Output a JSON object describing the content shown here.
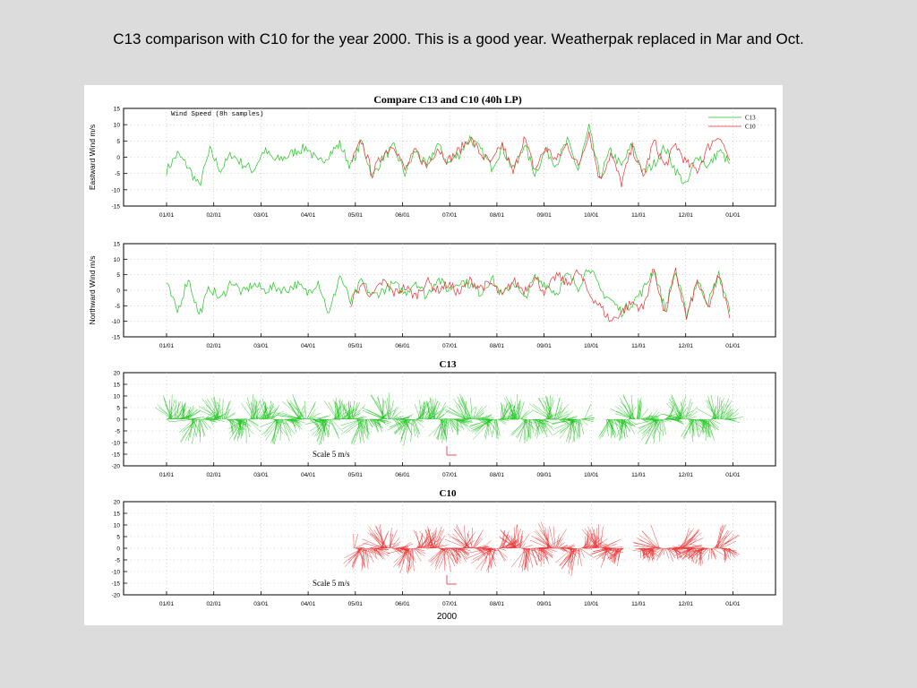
{
  "slide": {
    "title": "C13 comparison with C10 for the year 2000. This is a good year. Weatherpak replaced in Mar and Oct."
  },
  "figure": {
    "title": "Compare C13 and C10 (40h LP)",
    "xlabel": "2000"
  },
  "colors": {
    "c13": "#22c422",
    "c10": "#e83232",
    "axis": "#000000",
    "grid": "#bbbbbb"
  },
  "chart_data": [
    {
      "type": "line",
      "ylabel": "Eastward Wind m/s",
      "annotation": "Wind Speed (8h samples)",
      "legend": "top-right",
      "ylim": [
        -15,
        15
      ],
      "yticks": [
        -15,
        -10,
        -5,
        0,
        5,
        10,
        15
      ],
      "xticks": [
        "01/01",
        "02/01",
        "03/01",
        "04/01",
        "05/01",
        "06/01",
        "07/01",
        "08/01",
        "09/01",
        "10/01",
        "11/01",
        "12/01",
        "01/01"
      ],
      "x_range_days": [
        0,
        366
      ],
      "grid": true,
      "series": [
        {
          "name": "C13",
          "x": [
            0,
            7,
            14,
            21,
            28,
            35,
            42,
            49,
            56,
            63,
            70,
            77,
            84,
            91,
            98,
            105,
            112,
            119,
            126,
            133,
            140,
            147,
            154,
            161,
            168,
            175,
            182,
            189,
            196,
            203,
            210,
            217,
            224,
            231,
            238,
            245,
            252,
            259,
            266,
            273,
            280,
            287,
            294,
            301,
            308,
            315,
            322,
            329,
            336,
            343,
            350,
            357,
            364
          ],
          "values": [
            -4,
            1,
            -3,
            -9,
            2,
            -4,
            1,
            -2,
            -4,
            2,
            -1,
            0,
            2,
            3,
            -2,
            1,
            4,
            -3,
            5,
            -6,
            0,
            3,
            -5,
            2,
            -3,
            4,
            -2,
            1,
            6,
            2,
            -3,
            3,
            -4,
            4,
            -5,
            2,
            -2,
            5,
            -4,
            9,
            -6,
            2,
            -3,
            4,
            -5,
            -2,
            3,
            -4,
            -9,
            1,
            -3,
            2,
            -2
          ]
        },
        {
          "name": "C10",
          "x": [
            119,
            126,
            133,
            140,
            147,
            154,
            161,
            168,
            175,
            182,
            189,
            196,
            203,
            210,
            217,
            224,
            231,
            238,
            245,
            252,
            259,
            266,
            273,
            280,
            287,
            294,
            301,
            308,
            315,
            322,
            329,
            336,
            343,
            350,
            357,
            364
          ],
          "values": [
            -2,
            5,
            -5,
            1,
            4,
            -4,
            2,
            -3,
            3,
            -1,
            2,
            6,
            1,
            -2,
            4,
            -5,
            6,
            -4,
            3,
            -1,
            4,
            -3,
            8,
            -7,
            1,
            -8,
            3,
            -6,
            5,
            -3,
            4,
            -2,
            -4,
            3,
            7,
            -1
          ]
        }
      ]
    },
    {
      "type": "line",
      "ylabel": "Northward Wind m/s",
      "ylim": [
        -15,
        15
      ],
      "yticks": [
        -15,
        -10,
        -5,
        0,
        5,
        10,
        15
      ],
      "xticks": [
        "01/01",
        "02/01",
        "03/01",
        "04/01",
        "05/01",
        "06/01",
        "07/01",
        "08/01",
        "09/01",
        "10/01",
        "11/01",
        "12/01",
        "01/01"
      ],
      "x_range_days": [
        0,
        366
      ],
      "grid": true,
      "series": [
        {
          "name": "C13",
          "x": [
            0,
            7,
            14,
            21,
            28,
            35,
            42,
            49,
            56,
            63,
            70,
            77,
            84,
            91,
            98,
            105,
            112,
            119,
            126,
            133,
            140,
            147,
            154,
            161,
            168,
            175,
            182,
            189,
            196,
            203,
            210,
            217,
            224,
            231,
            238,
            245,
            252,
            259,
            266,
            273,
            280,
            287,
            294,
            301,
            308,
            315,
            322,
            329,
            336,
            343,
            350,
            357,
            364
          ],
          "values": [
            2,
            -7,
            4,
            -8,
            1,
            -3,
            3,
            -1,
            2,
            0,
            1,
            0,
            2,
            -1,
            3,
            -8,
            5,
            -4,
            3,
            -2,
            0,
            2,
            -1,
            3,
            -2,
            4,
            0,
            3,
            2,
            -1,
            4,
            -2,
            3,
            -3,
            4,
            2,
            -1,
            5,
            1,
            8,
            0,
            -3,
            -7,
            -4,
            0,
            7,
            -6,
            6,
            -8,
            3,
            -4,
            5,
            -7
          ]
        },
        {
          "name": "C10",
          "x": [
            119,
            126,
            133,
            140,
            147,
            154,
            161,
            168,
            175,
            182,
            189,
            196,
            203,
            210,
            217,
            224,
            231,
            238,
            245,
            252,
            259,
            266,
            273,
            280,
            287,
            294,
            301,
            308,
            315,
            322,
            329,
            336,
            343,
            350,
            357,
            364
          ],
          "values": [
            -4,
            2,
            -2,
            3,
            -1,
            1,
            -2,
            3,
            0,
            2,
            -1,
            3,
            1,
            2,
            -2,
            3,
            0,
            4,
            -1,
            5,
            2,
            6,
            -1,
            -5,
            -10,
            -7,
            -4,
            -6,
            7,
            -8,
            6,
            -9,
            3,
            -6,
            5,
            -9
          ]
        }
      ]
    },
    {
      "type": "vector",
      "title": "C13",
      "annotation": "Scale 5 m/s",
      "ylim": [
        -20,
        20
      ],
      "yticks": [
        -20,
        -15,
        -10,
        -5,
        0,
        5,
        10,
        15,
        20
      ],
      "xticks": [
        "01/01",
        "02/01",
        "03/01",
        "04/01",
        "05/01",
        "06/01",
        "07/01",
        "08/01",
        "09/01",
        "10/01",
        "11/01",
        "12/01",
        "01/01"
      ],
      "x_range_days": [
        0,
        366
      ],
      "grid": true,
      "series": [
        {
          "name": "C13",
          "segments": [
            [
              0,
              270
            ],
            [
              284,
              364
            ]
          ]
        }
      ]
    },
    {
      "type": "vector",
      "title": "C10",
      "annotation": "Scale 5 m/s",
      "xlabel": "2000",
      "ylim": [
        -20,
        20
      ],
      "yticks": [
        -20,
        -15,
        -10,
        -5,
        0,
        5,
        10,
        15,
        20
      ],
      "xticks": [
        "01/01",
        "02/01",
        "03/01",
        "04/01",
        "05/01",
        "06/01",
        "07/01",
        "08/01",
        "09/01",
        "10/01",
        "11/01",
        "12/01",
        "01/01"
      ],
      "x_range_days": [
        0,
        366
      ],
      "grid": true,
      "series": [
        {
          "name": "C10",
          "segments": [
            [
              121,
              296
            ],
            [
              305,
              364
            ]
          ]
        }
      ]
    }
  ]
}
